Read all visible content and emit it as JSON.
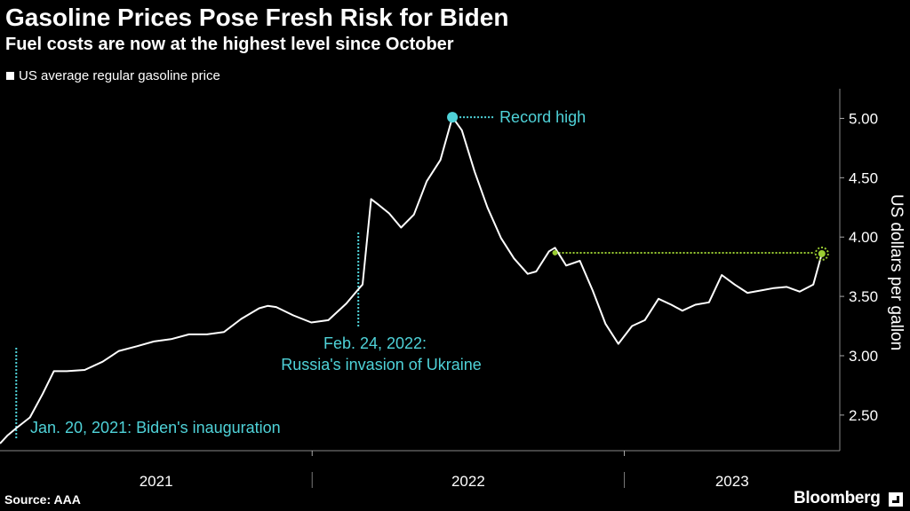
{
  "header": {
    "title": "Gasoline Prices Pose Fresh Risk for Biden",
    "subtitle": "Fuel costs are now at the highest level since October"
  },
  "legend": {
    "label": "US average regular gasoline price"
  },
  "footer": {
    "source": "Source: AAA",
    "brand": "Bloomberg"
  },
  "colors": {
    "line": "#ffffff",
    "annotation": "#4fd2d8",
    "current": "#9acd32",
    "background": "#000000"
  },
  "chart_data": {
    "type": "line",
    "title": "Gasoline Prices Pose Fresh Risk for Biden",
    "subtitle": "Fuel costs are now at the highest level since October",
    "ylabel": "US dollars per gallon",
    "xlabel": "",
    "ylim": [
      2.2,
      5.25
    ],
    "y_ticks": [
      "2.50",
      "3.00",
      "3.50",
      "4.00",
      "4.50",
      "5.00"
    ],
    "x_ticks": [
      "2021",
      "2022",
      "2023"
    ],
    "grid": false,
    "legend_position": "top-left",
    "series": [
      {
        "name": "US average regular gasoline price",
        "x": [
          "2021-01-01",
          "2021-01-10",
          "2021-01-20",
          "2021-02-05",
          "2021-02-20",
          "2021-03-05",
          "2021-03-20",
          "2021-04-10",
          "2021-05-01",
          "2021-05-20",
          "2021-06-10",
          "2021-06-30",
          "2021-07-20",
          "2021-08-10",
          "2021-08-31",
          "2021-09-20",
          "2021-10-10",
          "2021-10-31",
          "2021-11-10",
          "2021-11-20",
          "2021-12-10",
          "2021-12-31",
          "2022-01-20",
          "2022-02-10",
          "2022-02-24",
          "2022-03-01",
          "2022-03-11",
          "2022-03-20",
          "2022-04-01",
          "2022-04-15",
          "2022-04-30",
          "2022-05-15",
          "2022-05-31",
          "2022-06-14",
          "2022-06-25",
          "2022-07-10",
          "2022-07-25",
          "2022-08-10",
          "2022-08-25",
          "2022-09-10",
          "2022-09-20",
          "2022-10-05",
          "2022-10-12",
          "2022-10-25",
          "2022-11-10",
          "2022-11-25",
          "2022-12-10",
          "2022-12-25",
          "2023-01-10",
          "2023-01-25",
          "2023-02-10",
          "2023-02-25",
          "2023-03-10",
          "2023-03-25",
          "2023-04-10",
          "2023-04-25",
          "2023-05-10",
          "2023-05-25",
          "2023-06-10",
          "2023-06-25",
          "2023-07-10",
          "2023-07-25",
          "2023-08-10",
          "2023-08-20"
        ],
        "y": [
          2.26,
          2.33,
          2.39,
          2.48,
          2.68,
          2.87,
          2.87,
          2.88,
          2.95,
          3.04,
          3.08,
          3.12,
          3.14,
          3.18,
          3.18,
          3.2,
          3.31,
          3.4,
          3.42,
          3.41,
          3.34,
          3.28,
          3.3,
          3.44,
          3.56,
          3.6,
          4.32,
          4.27,
          4.2,
          4.08,
          4.19,
          4.47,
          4.65,
          5.01,
          4.9,
          4.55,
          4.25,
          3.99,
          3.82,
          3.69,
          3.71,
          3.88,
          3.91,
          3.76,
          3.8,
          3.55,
          3.27,
          3.1,
          3.25,
          3.3,
          3.48,
          3.43,
          3.38,
          3.43,
          3.45,
          3.68,
          3.6,
          3.53,
          3.55,
          3.57,
          3.58,
          3.54,
          3.6,
          3.86
        ]
      }
    ],
    "annotations": [
      {
        "label": "Record high",
        "x": "2022-06-14",
        "y": 5.01
      },
      {
        "label_line1": "Feb. 24, 2022:",
        "label_line2": "Russia's invasion of Ukraine",
        "x": "2022-02-24"
      },
      {
        "label": "Jan. 20, 2021: Biden's inauguration",
        "x": "2021-01-20"
      },
      {
        "label": "",
        "x": "2023-08-20",
        "y": 3.86
      }
    ]
  }
}
